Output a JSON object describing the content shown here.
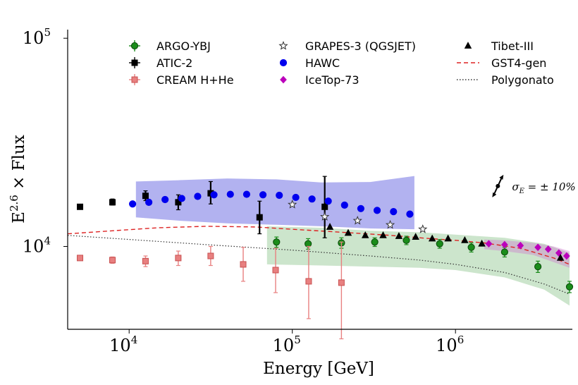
{
  "chart_data": {
    "type": "scatter",
    "xlabel": "Energy [GeV]",
    "ylabel_base": "E",
    "ylabel_exp": "2.6",
    "ylabel_rest": " × Flux",
    "xscale": "log",
    "yscale": "log",
    "xlim": [
      4200,
      5000000
    ],
    "ylim": [
      4000,
      110000
    ],
    "grid": false,
    "legend_placement": "top",
    "x_ticks": [
      {
        "value": 10000,
        "base": "10",
        "exp": "4"
      },
      {
        "value": 100000,
        "base": "10",
        "exp": "5"
      },
      {
        "value": 1000000,
        "base": "10",
        "exp": "6"
      }
    ],
    "y_ticks": [
      {
        "value": 10000,
        "base": "10",
        "exp": "4"
      },
      {
        "value": 100000,
        "base": "10",
        "exp": "5"
      }
    ],
    "annotation": {
      "text": "σ_E = ± 10%",
      "x": 2500000,
      "y": 19500
    },
    "bands": [
      {
        "series": "HAWC",
        "color": "#5555dd",
        "opacity": 0.45,
        "x": [
          11000,
          20000,
          40000,
          80000,
          150000,
          300000,
          560000
        ],
        "lower": [
          13800,
          13300,
          12900,
          12700,
          12500,
          12200,
          12100
        ],
        "upper": [
          20500,
          20800,
          21200,
          21000,
          20300,
          20400,
          21800
        ]
      },
      {
        "series": "ARGO-YBJ",
        "color": "#7fbf7f",
        "opacity": 0.4,
        "x": [
          70000,
          150000,
          300000,
          600000,
          1000000,
          2000000,
          3500000,
          5000000
        ],
        "lower": [
          8200,
          8100,
          8000,
          7900,
          7700,
          7100,
          6200,
          5200
        ],
        "upper": [
          12500,
          12300,
          11900,
          11700,
          11400,
          11000,
          10300,
          9300
        ]
      },
      {
        "series": "IceTop-73",
        "color": "#cc66cc",
        "opacity": 0.35,
        "x": [
          1500000,
          2000000,
          3000000,
          4000000,
          5000000
        ],
        "lower": [
          9700,
          9500,
          9100,
          8400,
          7900
        ],
        "upper": [
          10800,
          10700,
          10400,
          10000,
          9500
        ]
      }
    ],
    "series": [
      {
        "name": "ARGO-YBJ",
        "marker": "circle",
        "color": "#1a8c1a",
        "edge": "#0a4a0a",
        "points": [
          {
            "x": 80000,
            "y": 10500,
            "lo": 9900,
            "hi": 11100
          },
          {
            "x": 125000,
            "y": 10300,
            "lo": 9700,
            "hi": 10900
          },
          {
            "x": 200000,
            "y": 10400,
            "lo": 9800,
            "hi": 11000
          },
          {
            "x": 320000,
            "y": 10500,
            "lo": 10000,
            "hi": 11000
          },
          {
            "x": 500000,
            "y": 10700,
            "lo": 10200,
            "hi": 11200
          },
          {
            "x": 800000,
            "y": 10300,
            "lo": 9800,
            "hi": 10800
          },
          {
            "x": 1250000,
            "y": 9900,
            "lo": 9400,
            "hi": 10400
          },
          {
            "x": 2000000,
            "y": 9400,
            "lo": 8900,
            "hi": 9900
          },
          {
            "x": 3200000,
            "y": 8000,
            "lo": 7500,
            "hi": 8500
          },
          {
            "x": 5000000,
            "y": 6400,
            "lo": 6000,
            "hi": 6800
          }
        ]
      },
      {
        "name": "ATIC-2",
        "marker": "square",
        "color": "#000000",
        "edge": "#000000",
        "points": [
          {
            "x": 5000,
            "y": 15500,
            "lo": 15100,
            "hi": 15900
          },
          {
            "x": 7900,
            "y": 16300,
            "lo": 15800,
            "hi": 16900
          },
          {
            "x": 12600,
            "y": 17500,
            "lo": 16600,
            "hi": 18500
          },
          {
            "x": 20000,
            "y": 16300,
            "lo": 15000,
            "hi": 17700
          },
          {
            "x": 31600,
            "y": 18000,
            "lo": 16000,
            "hi": 20500
          },
          {
            "x": 63000,
            "y": 13800,
            "lo": 11500,
            "hi": 16500
          },
          {
            "x": 158000,
            "y": 15500,
            "lo": 11000,
            "hi": 21700
          }
        ]
      },
      {
        "name": "CREAM H+He",
        "marker": "square",
        "color": "#e88080",
        "edge": "#c85050",
        "points": [
          {
            "x": 5000,
            "y": 8800,
            "lo": 8600,
            "hi": 9000
          },
          {
            "x": 7900,
            "y": 8600,
            "lo": 8300,
            "hi": 8900
          },
          {
            "x": 12600,
            "y": 8500,
            "lo": 8000,
            "hi": 9000
          },
          {
            "x": 20000,
            "y": 8800,
            "lo": 8100,
            "hi": 9500
          },
          {
            "x": 31600,
            "y": 9000,
            "lo": 8100,
            "hi": 10000
          },
          {
            "x": 50000,
            "y": 8200,
            "lo": 6800,
            "hi": 9900
          },
          {
            "x": 79000,
            "y": 7700,
            "lo": 6000,
            "hi": 9800
          },
          {
            "x": 126000,
            "y": 6800,
            "lo": 4500,
            "hi": 10000
          },
          {
            "x": 200000,
            "y": 6700,
            "lo": 3600,
            "hi": 10500
          }
        ]
      },
      {
        "name": "GRAPES-3 (QGSJET)",
        "marker": "star",
        "color": "#ffffff",
        "edge": "#333333",
        "points": [
          {
            "x": 100000,
            "y": 15900
          },
          {
            "x": 158000,
            "y": 13900
          },
          {
            "x": 251000,
            "y": 13300
          },
          {
            "x": 398000,
            "y": 12700
          },
          {
            "x": 630000,
            "y": 12100
          }
        ]
      },
      {
        "name": "HAWC",
        "marker": "circle",
        "color": "#0000ee",
        "edge": "#0000ee",
        "points": [
          {
            "x": 10500,
            "y": 16000
          },
          {
            "x": 13200,
            "y": 16300
          },
          {
            "x": 16600,
            "y": 16800
          },
          {
            "x": 21000,
            "y": 17000
          },
          {
            "x": 26300,
            "y": 17400
          },
          {
            "x": 33100,
            "y": 17700
          },
          {
            "x": 41700,
            "y": 17800
          },
          {
            "x": 52500,
            "y": 17800
          },
          {
            "x": 66100,
            "y": 17700
          },
          {
            "x": 83200,
            "y": 17600
          },
          {
            "x": 105000,
            "y": 17200
          },
          {
            "x": 132000,
            "y": 16900
          },
          {
            "x": 166000,
            "y": 16500
          },
          {
            "x": 209000,
            "y": 15800
          },
          {
            "x": 263000,
            "y": 15200
          },
          {
            "x": 331000,
            "y": 14900
          },
          {
            "x": 417000,
            "y": 14700
          },
          {
            "x": 525000,
            "y": 14300
          }
        ]
      },
      {
        "name": "IceTop-73",
        "marker": "diamond",
        "color": "#bb00bb",
        "edge": "#bb00bb",
        "points": [
          {
            "x": 1600000,
            "y": 10300
          },
          {
            "x": 2000000,
            "y": 10200
          },
          {
            "x": 2500000,
            "y": 10100
          },
          {
            "x": 3200000,
            "y": 9900
          },
          {
            "x": 3700000,
            "y": 9700
          },
          {
            "x": 4300000,
            "y": 9300
          },
          {
            "x": 4800000,
            "y": 9000
          }
        ]
      },
      {
        "name": "Tibet-III",
        "marker": "triangle",
        "color": "#000000",
        "edge": "#000000",
        "points": [
          {
            "x": 170000,
            "y": 12400
          },
          {
            "x": 220000,
            "y": 11600
          },
          {
            "x": 280000,
            "y": 11300
          },
          {
            "x": 360000,
            "y": 11300
          },
          {
            "x": 450000,
            "y": 11200
          },
          {
            "x": 570000,
            "y": 11100
          },
          {
            "x": 720000,
            "y": 10900
          },
          {
            "x": 900000,
            "y": 10900
          },
          {
            "x": 1140000,
            "y": 10700
          },
          {
            "x": 1450000,
            "y": 10300
          },
          {
            "x": 4400000,
            "y": 8800
          }
        ]
      }
    ],
    "lines": [
      {
        "name": "GST4-gen",
        "style": "dashed",
        "color": "#dd2222",
        "x": [
          4200,
          8000,
          15000,
          30000,
          60000,
          100000,
          200000,
          400000,
          700000,
          1000000,
          1500000,
          2500000,
          4000000,
          5000000
        ],
        "y": [
          11500,
          11900,
          12300,
          12500,
          12400,
          12100,
          11700,
          11300,
          10900,
          10700,
          10400,
          9800,
          8800,
          8200
        ]
      },
      {
        "name": "Polygonato",
        "style": "dotted",
        "color": "#333333",
        "x": [
          4200,
          10000,
          30000,
          100000,
          300000,
          600000,
          1000000,
          2000000,
          3500000,
          5000000
        ],
        "y": [
          11300,
          10800,
          10200,
          9600,
          9000,
          8600,
          8200,
          7500,
          6600,
          5900
        ]
      }
    ],
    "legend": [
      {
        "label": "ARGO-YBJ",
        "type": "errpoint",
        "marker": "circle",
        "color": "#1a8c1a",
        "edge": "#0a4a0a"
      },
      {
        "label": "ATIC-2",
        "type": "errpoint",
        "marker": "square",
        "color": "#000000",
        "edge": "#000000"
      },
      {
        "label": "CREAM H+He",
        "type": "errpoint",
        "marker": "square",
        "color": "#e88080",
        "edge": "#c85050"
      },
      {
        "label": "GRAPES-3 (QGSJET)",
        "type": "point",
        "marker": "star",
        "color": "#ffffff",
        "edge": "#333333"
      },
      {
        "label": "HAWC",
        "type": "point",
        "marker": "circle",
        "color": "#0000ee",
        "edge": "#0000ee"
      },
      {
        "label": "IceTop-73",
        "type": "point",
        "marker": "diamond",
        "color": "#bb00bb",
        "edge": "#bb00bb"
      },
      {
        "label": "Tibet-III",
        "type": "point",
        "marker": "triangle",
        "color": "#000000",
        "edge": "#000000"
      },
      {
        "label": "GST4-gen",
        "type": "line",
        "style": "dashed",
        "color": "#dd2222"
      },
      {
        "label": "Polygonato",
        "type": "line",
        "style": "dotted",
        "color": "#333333"
      }
    ]
  }
}
